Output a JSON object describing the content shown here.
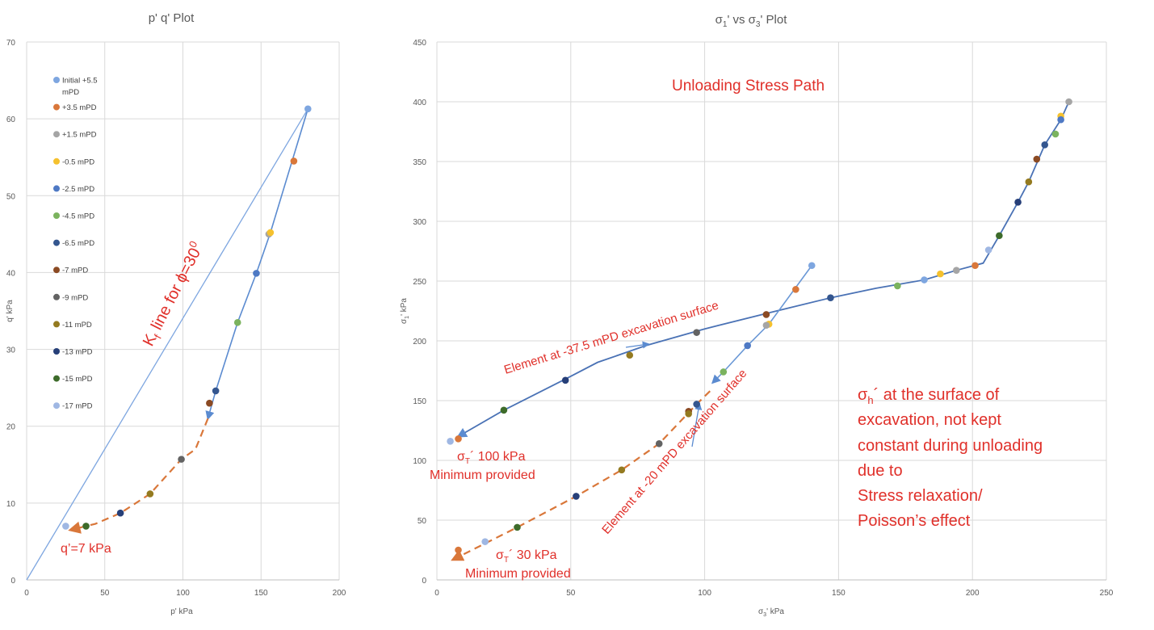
{
  "chart_data": [
    {
      "type": "scatter",
      "title": "p' q' Plot",
      "xlabel": "p' kPa",
      "ylabel": "q' kPa",
      "xlim": [
        0,
        200
      ],
      "ylim": [
        0,
        70
      ],
      "xticks": [
        0,
        50,
        100,
        150,
        200
      ],
      "yticks": [
        0,
        10,
        20,
        30,
        40,
        50,
        60,
        70
      ],
      "grid": true,
      "legend_position": "top-left",
      "series": [
        {
          "name": "Initial +5.5 mPD",
          "color": "#7ea6e0",
          "x": [
            180
          ],
          "y": [
            61.3
          ]
        },
        {
          "name": "+3.5 mPD",
          "color": "#d9773a",
          "x": [
            171
          ],
          "y": [
            54.5
          ]
        },
        {
          "name": "+1.5 mPD",
          "color": "#a5a5a5",
          "x": [
            155
          ],
          "y": [
            45
          ]
        },
        {
          "name": "-0.5 mPD",
          "color": "#f5c12e",
          "x": [
            156
          ],
          "y": [
            45.2
          ]
        },
        {
          "name": "-2.5 mPD",
          "color": "#4e79c4",
          "x": [
            147
          ],
          "y": [
            39.9
          ]
        },
        {
          "name": "-4.5 mPD",
          "color": "#7bb35e",
          "x": [
            135
          ],
          "y": [
            33.5
          ]
        },
        {
          "name": "-6.5 mPD",
          "color": "#34568f",
          "x": [
            121
          ],
          "y": [
            24.6
          ]
        },
        {
          "name": "-7 mPD",
          "color": "#8b4a23",
          "x": [
            117
          ],
          "y": [
            23
          ]
        },
        {
          "name": "-9 mPD",
          "color": "#636363",
          "x": [
            99
          ],
          "y": [
            15.7
          ]
        },
        {
          "name": "-11 mPD",
          "color": "#947a20",
          "x": [
            79
          ],
          "y": [
            11.2
          ]
        },
        {
          "name": "-13 mPD",
          "color": "#263f78",
          "x": [
            60
          ],
          "y": [
            8.7
          ]
        },
        {
          "name": "-15 mPD",
          "color": "#3d6b2a",
          "x": [
            38
          ],
          "y": [
            7
          ]
        },
        {
          "name": "-17 mPD",
          "color": "#9fb7e3",
          "x": [
            25
          ],
          "y": [
            7
          ]
        }
      ],
      "kf_line": [
        [
          0,
          0
        ],
        [
          180,
          61.3
        ]
      ],
      "stress_path": [
        [
          180,
          61.3
        ],
        [
          156,
          45.2
        ],
        [
          147,
          39.9
        ],
        [
          135,
          33.5
        ],
        [
          121,
          24.6
        ],
        [
          116,
          21
        ]
      ],
      "dashed_path": [
        [
          116,
          21
        ],
        [
          108,
          17
        ],
        [
          99,
          15.7
        ],
        [
          79,
          11.2
        ],
        [
          60,
          8.7
        ],
        [
          44,
          7.3
        ],
        [
          28,
          6.5
        ]
      ],
      "annotations": {
        "kf_prefix": "K",
        "kf_sub": "f",
        "kf_mid": " line for ϕ=30",
        "kf_sup": "0",
        "q_min": "q’=7 kPa"
      }
    },
    {
      "type": "scatter",
      "title_main": "σ",
      "title_sub": "1",
      "title_rest": "' vs σ",
      "title_sub2": "3",
      "title_end": "' Plot",
      "xlabel_main": "σ",
      "xlabel_sub": "3",
      "xlabel_rest": "' kPa",
      "ylabel_main": "σ",
      "ylabel_sub": "1",
      "ylabel_rest": "' kPa",
      "xlim": [
        0,
        250
      ],
      "ylim": [
        0,
        450
      ],
      "xticks": [
        0,
        50,
        100,
        150,
        200,
        250
      ],
      "yticks": [
        0,
        50,
        100,
        150,
        200,
        250,
        300,
        350,
        400,
        450
      ],
      "grid": true,
      "points": [
        {
          "x": 236,
          "y": 400,
          "color": "#a5a5a5"
        },
        {
          "x": 233,
          "y": 388,
          "color": "#f5c12e"
        },
        {
          "x": 233,
          "y": 385,
          "color": "#4e79c4"
        },
        {
          "x": 231,
          "y": 373,
          "color": "#7bb35e"
        },
        {
          "x": 227,
          "y": 364,
          "color": "#34568f"
        },
        {
          "x": 224,
          "y": 352,
          "color": "#8b4a23"
        },
        {
          "x": 221,
          "y": 333,
          "color": "#947a20"
        },
        {
          "x": 217,
          "y": 316,
          "color": "#263f78"
        },
        {
          "x": 210,
          "y": 288,
          "color": "#3d6b2a"
        },
        {
          "x": 206,
          "y": 276,
          "color": "#9fb7e3"
        },
        {
          "x": 201,
          "y": 263,
          "color": "#d9773a"
        },
        {
          "x": 194,
          "y": 259,
          "color": "#a5a5a5"
        },
        {
          "x": 188,
          "y": 256,
          "color": "#f5c12e"
        },
        {
          "x": 182,
          "y": 251,
          "color": "#7ea6e0"
        },
        {
          "x": 172,
          "y": 246,
          "color": "#7bb35e"
        },
        {
          "x": 147,
          "y": 236,
          "color": "#34568f"
        },
        {
          "x": 123,
          "y": 222,
          "color": "#8b4a23"
        },
        {
          "x": 97,
          "y": 207,
          "color": "#636363"
        },
        {
          "x": 72,
          "y": 188,
          "color": "#947a20"
        },
        {
          "x": 48,
          "y": 167,
          "color": "#263f78"
        },
        {
          "x": 25,
          "y": 142,
          "color": "#3d6b2a"
        },
        {
          "x": 8,
          "y": 118,
          "color": "#d9773a"
        },
        {
          "x": 5,
          "y": 116,
          "color": "#9fb7e3"
        },
        {
          "x": 140,
          "y": 263,
          "color": "#7ea6e0"
        },
        {
          "x": 134,
          "y": 243,
          "color": "#d9773a"
        },
        {
          "x": 124,
          "y": 214,
          "color": "#f5c12e"
        },
        {
          "x": 123,
          "y": 213,
          "color": "#a5a5a5"
        },
        {
          "x": 116,
          "y": 196,
          "color": "#4e79c4"
        },
        {
          "x": 107,
          "y": 174,
          "color": "#7bb35e"
        },
        {
          "x": 97,
          "y": 147,
          "color": "#34568f"
        },
        {
          "x": 94,
          "y": 141,
          "color": "#8b4a23"
        },
        {
          "x": 94,
          "y": 139,
          "color": "#947a20"
        },
        {
          "x": 83,
          "y": 114,
          "color": "#636363"
        },
        {
          "x": 69,
          "y": 92,
          "color": "#947a20"
        },
        {
          "x": 52,
          "y": 70,
          "color": "#263f78"
        },
        {
          "x": 30,
          "y": 44,
          "color": "#3d6b2a"
        },
        {
          "x": 18,
          "y": 32,
          "color": "#9fb7e3"
        },
        {
          "x": 8,
          "y": 25,
          "color": "#d9773a"
        }
      ],
      "upper_path": [
        [
          236,
          400
        ],
        [
          233,
          385
        ],
        [
          227,
          364
        ],
        [
          221,
          333
        ],
        [
          217,
          316
        ],
        [
          210,
          288
        ],
        [
          204,
          265
        ],
        [
          194,
          259
        ],
        [
          182,
          251
        ],
        [
          164,
          244
        ],
        [
          147,
          236
        ],
        [
          125,
          224
        ],
        [
          100,
          210
        ],
        [
          78,
          196
        ],
        [
          60,
          182
        ],
        [
          48,
          168
        ],
        [
          25,
          142
        ],
        [
          8,
          120
        ]
      ],
      "element20_path": [
        [
          140,
          263
        ],
        [
          124,
          214
        ],
        [
          116,
          196
        ],
        [
          107,
          174
        ],
        [
          103,
          165
        ]
      ],
      "dashed_path": [
        [
          102,
          158
        ],
        [
          97,
          147
        ],
        [
          83,
          114
        ],
        [
          69,
          92
        ],
        [
          52,
          70
        ],
        [
          30,
          44
        ],
        [
          6,
          17
        ]
      ],
      "annotations": {
        "title_in": "Unloading Stress Path",
        "elem375": "Element at -37.5 mPD excavation surface",
        "elem20": "Element at -20 mPD excavation surface",
        "sigma_T_100": "σ",
        "sigma_T_sub": "T",
        "sigma_T_100_rest": "´ 100 kPa",
        "min100": "Minimum provided",
        "sigma_T_30_rest": "´ 30 kPa",
        "min30": "Minimum provided",
        "sh_main": "σ",
        "sh_sub": "h",
        "sh_rest": "´ at the surface of",
        "sh_line2": "excavation, not kept",
        "sh_line3": "constant during unloading",
        "sh_line4": "due to",
        "sh_line5": "Stress relaxation/",
        "sh_line6": "Poisson’s effect"
      }
    }
  ]
}
